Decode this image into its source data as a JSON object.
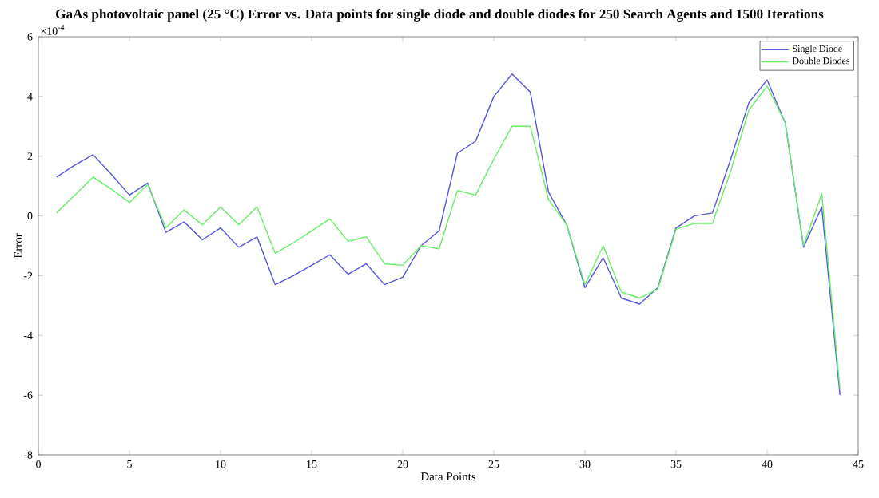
{
  "chart_data": {
    "type": "line",
    "title": "GaAs photovoltaic panel (25 °C) Error vs. Data points for single diode and double diodes for 250 Search Agents and 1500 Iterations",
    "xlabel": "Data Points",
    "ylabel": "Error",
    "annotations": [
      "×10$^{-4}$"
    ],
    "x": [
      1,
      2,
      3,
      4,
      5,
      6,
      7,
      8,
      9,
      10,
      11,
      12,
      13,
      14,
      15,
      16,
      17,
      18,
      19,
      20,
      21,
      22,
      23,
      24,
      25,
      26,
      27,
      28,
      29,
      30,
      31,
      32,
      33,
      34,
      35,
      36,
      37,
      38,
      39,
      40,
      41,
      42,
      43,
      44
    ],
    "series": [
      {
        "name": "Single Diode",
        "color": "#5555dd",
        "values": [
          1.3,
          1.7,
          2.05,
          1.4,
          0.7,
          1.1,
          -0.55,
          -0.2,
          -0.8,
          -0.4,
          -1.05,
          -0.7,
          -2.3,
          -2.0,
          -1.65,
          -1.3,
          -1.95,
          -1.6,
          -2.3,
          -2.05,
          -1.0,
          -0.5,
          2.1,
          2.5,
          4.0,
          4.75,
          4.15,
          0.8,
          -0.3,
          -2.4,
          -1.4,
          -2.75,
          -2.95,
          -2.4,
          -0.4,
          0.0,
          0.1,
          1.9,
          3.8,
          4.55,
          3.1,
          -1.05,
          0.3,
          -6.0
        ]
      },
      {
        "name": "Double Diodes",
        "color": "#66ee66",
        "values": [
          0.1,
          0.7,
          1.3,
          0.9,
          0.45,
          1.05,
          -0.4,
          0.2,
          -0.3,
          0.3,
          -0.3,
          0.3,
          -1.25,
          -0.9,
          -0.5,
          -0.1,
          -0.85,
          -0.7,
          -1.6,
          -1.65,
          -1.0,
          -1.1,
          0.85,
          0.7,
          1.9,
          3.0,
          3.0,
          0.55,
          -0.3,
          -2.3,
          -1.0,
          -2.55,
          -2.75,
          -2.45,
          -0.45,
          -0.25,
          -0.25,
          1.5,
          3.55,
          4.35,
          3.1,
          -1.0,
          0.75,
          -5.8
        ]
      }
    ],
    "xlim": [
      0,
      45
    ],
    "xticks": [
      0,
      5,
      10,
      15,
      20,
      25,
      30,
      35,
      40,
      45
    ],
    "ylim": [
      -8,
      6
    ],
    "yticks": [
      -8,
      -6,
      -4,
      -2,
      0,
      2,
      4,
      6
    ],
    "grid": false,
    "legend": "top right",
    "marker": "none",
    "line_style": "solid"
  }
}
